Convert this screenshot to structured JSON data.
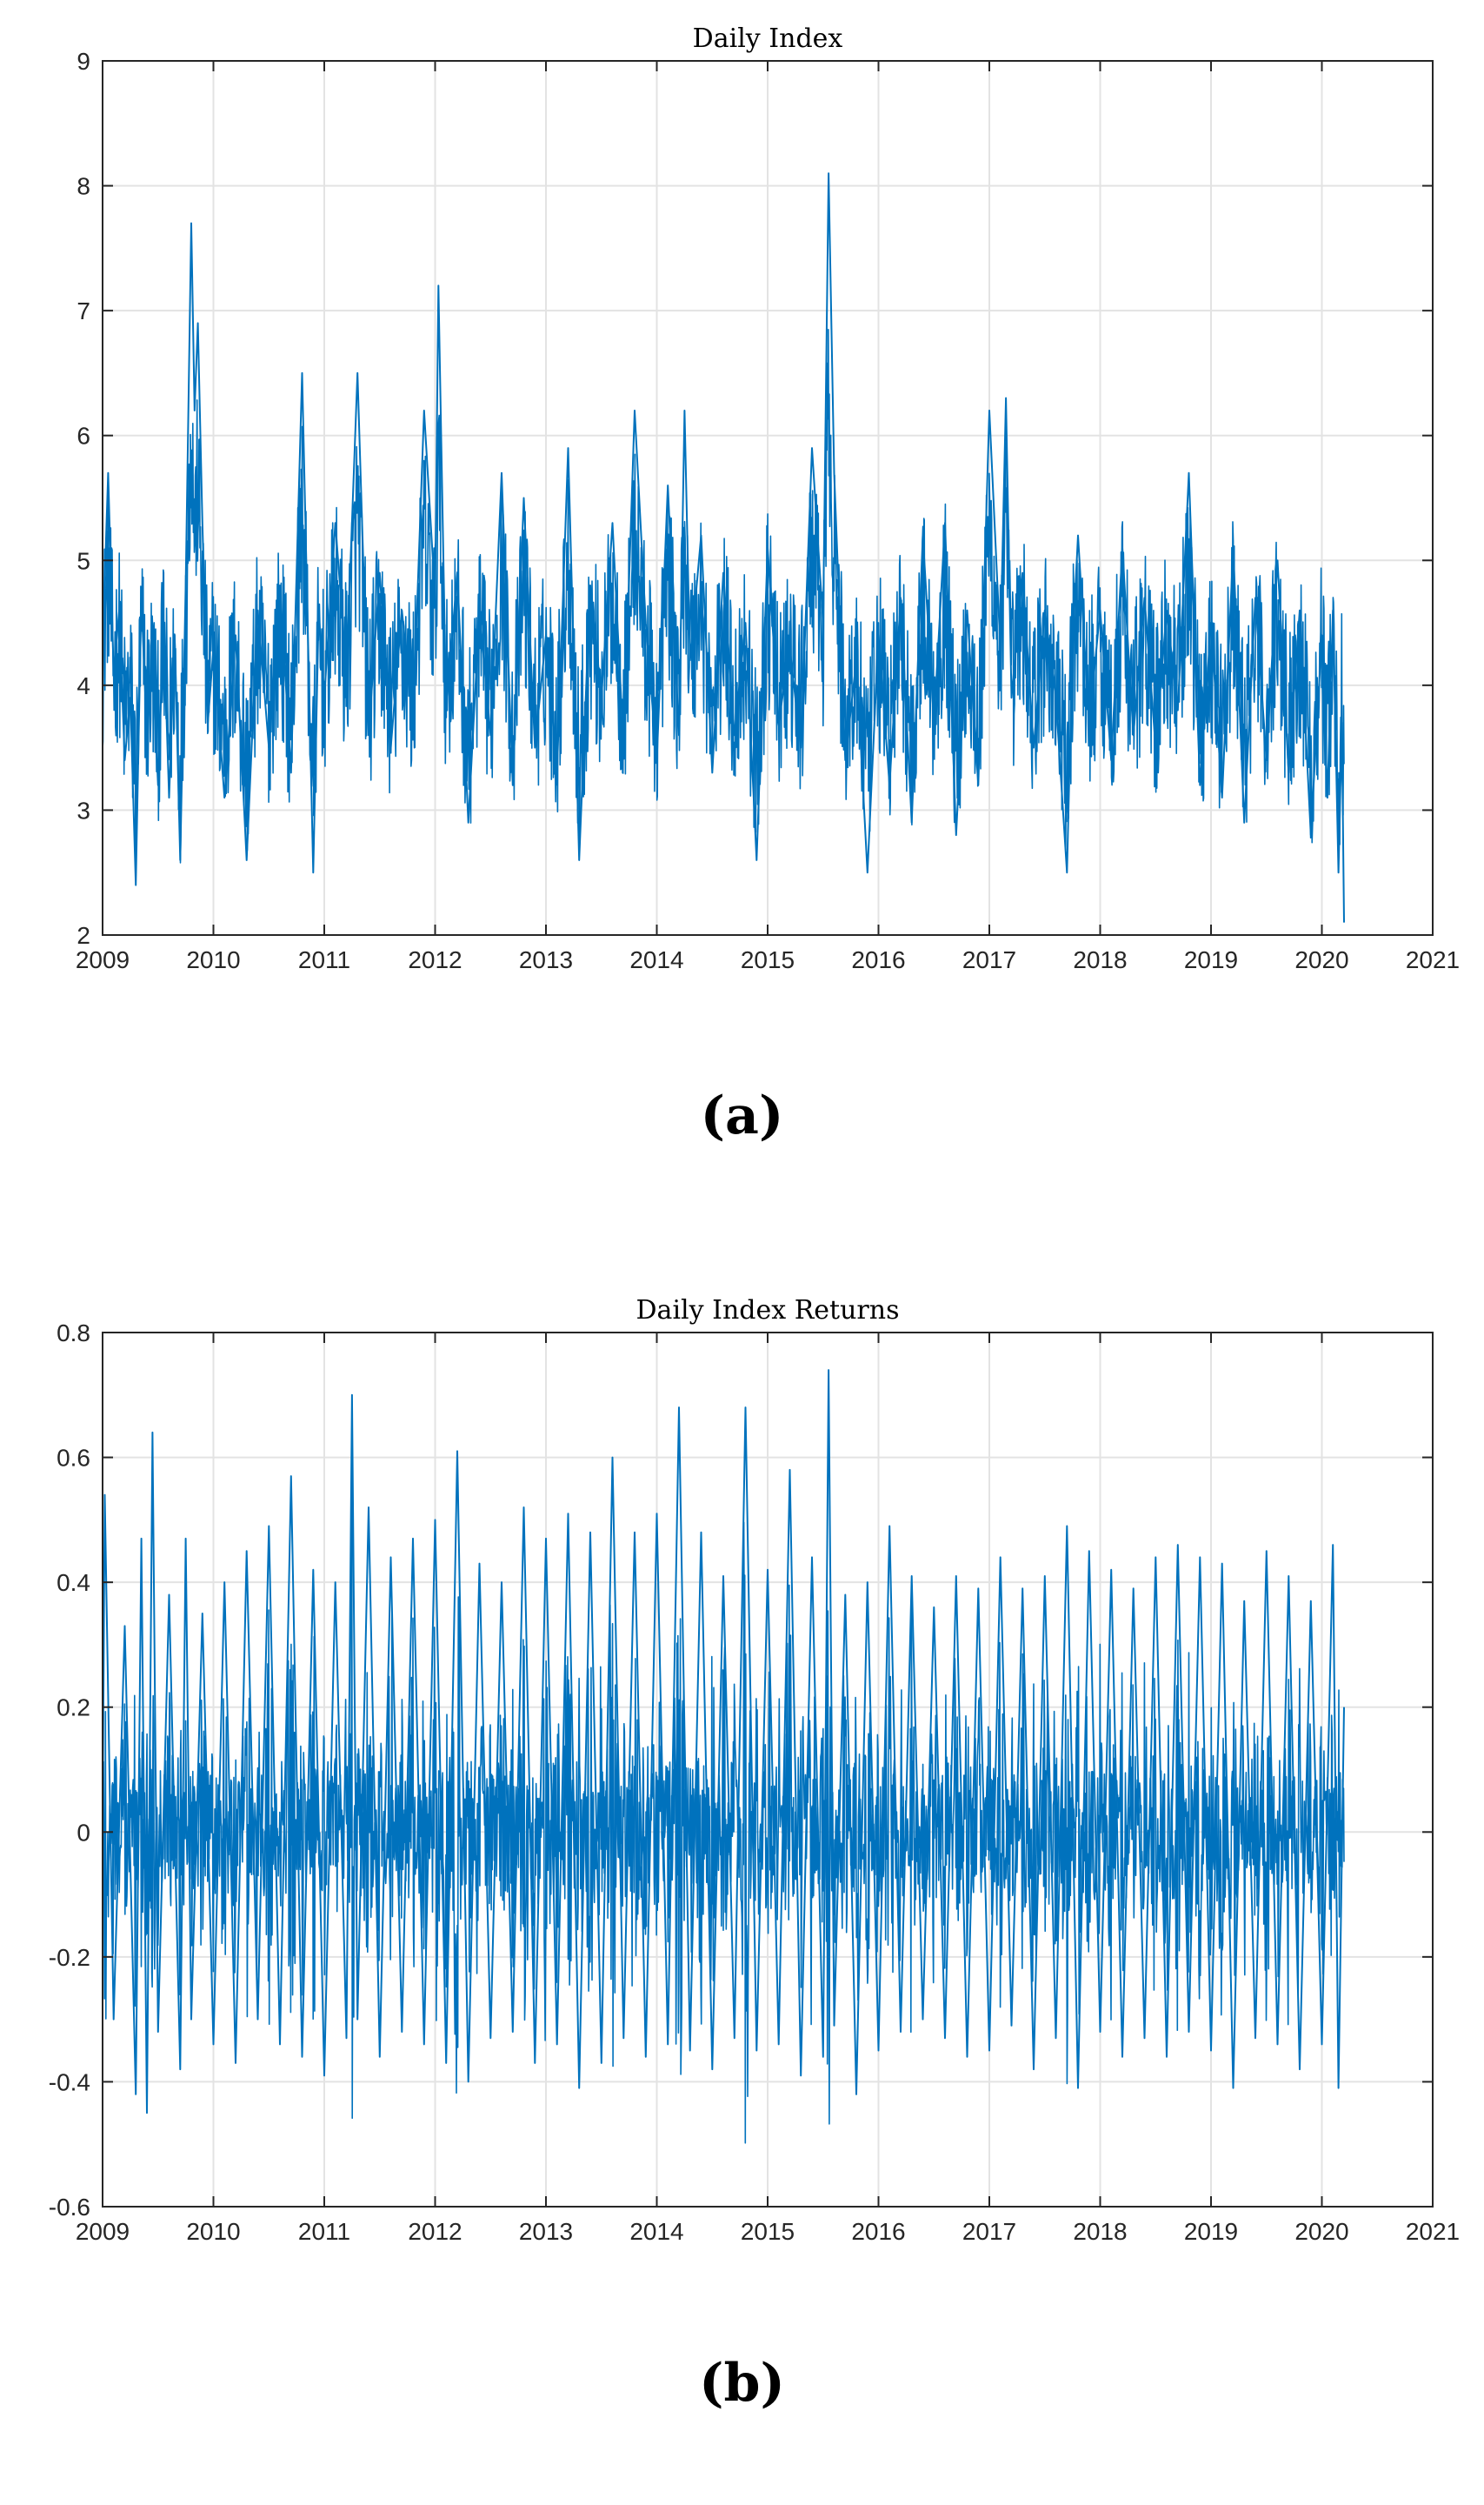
{
  "chart_data": [
    {
      "type": "line",
      "title": "Daily Index",
      "xlabel": "",
      "ylabel": "",
      "xlim": [
        2009,
        2021
      ],
      "ylim": [
        2,
        9
      ],
      "xticks": [
        "2009",
        "2010",
        "2011",
        "2012",
        "2013",
        "2014",
        "2015",
        "2016",
        "2017",
        "2018",
        "2019",
        "2020",
        "2021"
      ],
      "yticks": [
        "2",
        "3",
        "4",
        "5",
        "6",
        "7",
        "8",
        "9"
      ],
      "grid": true,
      "line_color": "#0072BD",
      "series": [
        {
          "x": [
            2009.0,
            2009.05,
            2009.1,
            2009.15,
            2009.2,
            2009.25,
            2009.3,
            2009.35,
            2009.4,
            2009.45,
            2009.5,
            2009.55,
            2009.6,
            2009.65,
            2009.7,
            2009.75,
            2009.8,
            2009.83,
            2009.86,
            2009.9,
            2009.95,
            2010.0,
            2010.1,
            2010.2,
            2010.3,
            2010.4,
            2010.5,
            2010.6,
            2010.7,
            2010.8,
            2010.9,
            2010.95,
            2011.0,
            2011.1,
            2011.2,
            2011.3,
            2011.4,
            2011.5,
            2011.6,
            2011.7,
            2011.8,
            2011.9,
            2012.0,
            2012.03,
            2012.1,
            2012.2,
            2012.3,
            2012.4,
            2012.5,
            2012.6,
            2012.7,
            2012.8,
            2012.9,
            2013.0,
            2013.1,
            2013.2,
            2013.3,
            2013.4,
            2013.5,
            2013.6,
            2013.7,
            2013.8,
            2013.9,
            2014.0,
            2014.1,
            2014.2,
            2014.25,
            2014.3,
            2014.4,
            2014.5,
            2014.6,
            2014.7,
            2014.8,
            2014.9,
            2015.0,
            2015.1,
            2015.2,
            2015.3,
            2015.4,
            2015.5,
            2015.55,
            2015.6,
            2015.7,
            2015.8,
            2015.9,
            2016.0,
            2016.1,
            2016.2,
            2016.3,
            2016.4,
            2016.5,
            2016.6,
            2016.7,
            2016.8,
            2016.9,
            2017.0,
            2017.1,
            2017.15,
            2017.2,
            2017.3,
            2017.4,
            2017.5,
            2017.6,
            2017.7,
            2017.75,
            2017.8,
            2017.9,
            2018.0,
            2018.1,
            2018.2,
            2018.3,
            2018.4,
            2018.5,
            2018.6,
            2018.7,
            2018.8,
            2018.9,
            2019.0,
            2019.1,
            2019.2,
            2019.3,
            2019.4,
            2019.5,
            2019.6,
            2019.7,
            2019.8,
            2019.9,
            2020.0,
            2020.05,
            2020.1,
            2020.15,
            2020.18,
            2020.2
          ],
          "y": [
            4.3,
            5.7,
            4.1,
            4.6,
            3.4,
            3.9,
            2.4,
            4.7,
            3.6,
            4.2,
            3.2,
            4.5,
            3.1,
            4.4,
            2.6,
            4.8,
            7.7,
            6.2,
            6.9,
            5.3,
            3.7,
            4.3,
            3.1,
            4.4,
            2.6,
            4.6,
            3.5,
            4.8,
            3.3,
            6.5,
            2.5,
            4.6,
            3.9,
            5.3,
            4.1,
            6.5,
            3.6,
            4.9,
            3.5,
            4.6,
            3.7,
            6.2,
            4.7,
            7.2,
            3.8,
            4.9,
            2.9,
            4.6,
            3.6,
            5.7,
            3.2,
            5.5,
            3.5,
            4.4,
            3.3,
            5.9,
            2.6,
            4.8,
            3.9,
            5.3,
            3.5,
            6.2,
            4.5,
            3.4,
            5.6,
            3.6,
            6.2,
            4.2,
            5.2,
            3.3,
            4.9,
            3.6,
            4.5,
            2.6,
            5.1,
            3.7,
            4.3,
            3.5,
            5.9,
            4.5,
            8.1,
            5.7,
            3.4,
            4.2,
            2.5,
            4.4,
            3.2,
            4.7,
            2.9,
            5.2,
            3.7,
            5.3,
            2.8,
            4.6,
            3.2,
            6.2,
            4.3,
            6.3,
            3.9,
            4.9,
            3.5,
            4.6,
            3.9,
            2.5,
            4.3,
            5.2,
            3.7,
            4.6,
            3.4,
            5.1,
            3.6,
            4.7,
            3.5,
            4.6,
            3.8,
            5.7,
            3.2,
            4.5,
            3.1,
            5.1,
            2.9,
            4.7,
            3.4,
            5.0,
            3.3,
            4.6,
            2.8,
            4.4,
            3.1,
            4.6,
            2.5,
            3.7,
            2.1
          ]
        }
      ]
    },
    {
      "type": "line",
      "title": "Daily Index Returns",
      "xlabel": "",
      "ylabel": "",
      "xlim": [
        2009,
        2021
      ],
      "ylim": [
        -0.6,
        0.8
      ],
      "xticks": [
        "2009",
        "2010",
        "2011",
        "2012",
        "2013",
        "2014",
        "2015",
        "2016",
        "2017",
        "2018",
        "2019",
        "2020",
        "2021"
      ],
      "yticks": [
        "-0.6",
        "-0.4",
        "-0.2",
        "0",
        "0.2",
        "0.4",
        "0.6",
        "0.8"
      ],
      "grid": true,
      "line_color": "#0072BD",
      "series": [
        {
          "x": [
            2009.0,
            2009.02,
            2009.1,
            2009.2,
            2009.3,
            2009.35,
            2009.4,
            2009.45,
            2009.5,
            2009.6,
            2009.7,
            2009.75,
            2009.8,
            2009.9,
            2010.0,
            2010.1,
            2010.2,
            2010.3,
            2010.4,
            2010.5,
            2010.6,
            2010.7,
            2010.8,
            2010.9,
            2011.0,
            2011.1,
            2011.2,
            2011.25,
            2011.3,
            2011.4,
            2011.5,
            2011.6,
            2011.7,
            2011.8,
            2011.9,
            2012.0,
            2012.1,
            2012.2,
            2012.3,
            2012.4,
            2012.5,
            2012.6,
            2012.7,
            2012.8,
            2012.9,
            2013.0,
            2013.1,
            2013.2,
            2013.3,
            2013.4,
            2013.5,
            2013.6,
            2013.7,
            2013.8,
            2013.9,
            2014.0,
            2014.1,
            2014.2,
            2014.3,
            2014.4,
            2014.5,
            2014.6,
            2014.7,
            2014.8,
            2014.9,
            2015.0,
            2015.1,
            2015.2,
            2015.3,
            2015.4,
            2015.5,
            2015.55,
            2015.6,
            2015.7,
            2015.8,
            2015.9,
            2016.0,
            2016.1,
            2016.2,
            2016.3,
            2016.4,
            2016.5,
            2016.6,
            2016.7,
            2016.8,
            2016.9,
            2017.0,
            2017.1,
            2017.2,
            2017.3,
            2017.4,
            2017.5,
            2017.6,
            2017.7,
            2017.8,
            2017.9,
            2018.0,
            2018.1,
            2018.2,
            2018.3,
            2018.4,
            2018.5,
            2018.6,
            2018.7,
            2018.8,
            2018.9,
            2019.0,
            2019.1,
            2019.2,
            2019.3,
            2019.4,
            2019.5,
            2019.6,
            2019.7,
            2019.8,
            2019.9,
            2020.0,
            2020.1,
            2020.15,
            2020.2
          ],
          "y": [
            0.0,
            0.54,
            -0.3,
            0.33,
            -0.42,
            0.47,
            -0.45,
            0.64,
            -0.32,
            0.38,
            -0.38,
            0.47,
            -0.3,
            0.35,
            -0.34,
            0.4,
            -0.37,
            0.45,
            -0.3,
            0.49,
            -0.34,
            0.57,
            -0.36,
            0.42,
            -0.39,
            0.4,
            -0.33,
            0.7,
            -0.3,
            0.52,
            -0.36,
            0.44,
            -0.32,
            0.47,
            -0.34,
            0.5,
            -0.37,
            0.61,
            -0.4,
            0.43,
            -0.33,
            0.4,
            -0.32,
            0.52,
            -0.37,
            0.47,
            -0.34,
            0.51,
            -0.41,
            0.48,
            -0.37,
            0.6,
            -0.33,
            0.48,
            -0.36,
            0.51,
            -0.34,
            0.68,
            -0.35,
            0.48,
            -0.38,
            0.41,
            -0.33,
            0.68,
            -0.35,
            0.42,
            -0.34,
            0.58,
            -0.39,
            0.44,
            -0.36,
            0.74,
            -0.31,
            0.38,
            -0.42,
            0.4,
            -0.35,
            0.49,
            -0.32,
            0.41,
            -0.3,
            0.36,
            -0.33,
            0.41,
            -0.36,
            0.39,
            -0.35,
            0.44,
            -0.31,
            0.39,
            -0.38,
            0.41,
            -0.33,
            0.49,
            -0.41,
            0.45,
            -0.32,
            0.42,
            -0.36,
            0.39,
            -0.33,
            0.44,
            -0.36,
            0.46,
            -0.32,
            0.44,
            -0.35,
            0.43,
            -0.41,
            0.37,
            -0.33,
            0.45,
            -0.34,
            0.41,
            -0.38,
            0.37,
            -0.34,
            0.46,
            -0.41,
            0.2
          ]
        }
      ]
    }
  ],
  "panel_labels": [
    "(a)",
    "(b)"
  ]
}
